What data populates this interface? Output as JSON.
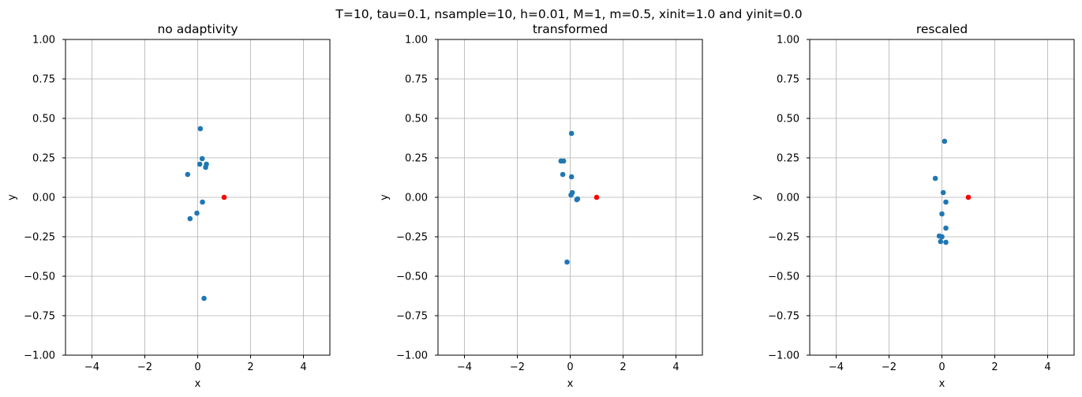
{
  "figure": {
    "suptitle": "T=10, tau=0.1, nsample=10, h=0.01, M=1, m=0.5, xinit=1.0 and yinit=0.0"
  },
  "chart_data": [
    {
      "type": "scatter",
      "title": "no adaptivity",
      "xlabel": "x",
      "ylabel": "y",
      "xlim": [
        -5,
        5
      ],
      "ylim": [
        -1,
        1
      ],
      "grid": true,
      "xticks": [
        -4,
        -2,
        0,
        2,
        4
      ],
      "xtick_labels": [
        "−4",
        "−2",
        "0",
        "2",
        "4"
      ],
      "yticks": [
        1.0,
        0.75,
        0.5,
        0.25,
        0.0,
        -0.25,
        -0.5,
        -0.75,
        -1.0
      ],
      "ytick_labels": [
        "1.00",
        "0.75",
        "0.50",
        "0.25",
        "0.00",
        "−0.25",
        "−0.50",
        "−0.75",
        "−1.00"
      ],
      "series": [
        {
          "color": "#1f77b4",
          "x": [
            0.1,
            0.17,
            0.08,
            0.33,
            0.3,
            -0.38,
            0.18,
            -0.03,
            -0.29,
            0.24
          ],
          "y": [
            0.435,
            0.245,
            0.21,
            0.21,
            0.19,
            0.145,
            -0.03,
            -0.1,
            -0.135,
            -0.64
          ]
        },
        {
          "color": "#ff0000",
          "x": [
            1.0
          ],
          "y": [
            0.0
          ]
        }
      ]
    },
    {
      "type": "scatter",
      "title": "transformed",
      "xlabel": "x",
      "ylabel": "y",
      "xlim": [
        -5,
        5
      ],
      "ylim": [
        -1,
        1
      ],
      "grid": true,
      "xticks": [
        -4,
        -2,
        0,
        2,
        4
      ],
      "xtick_labels": [
        "−4",
        "−2",
        "0",
        "2",
        "4"
      ],
      "yticks": [
        1.0,
        0.75,
        0.5,
        0.25,
        0.0,
        -0.25,
        -0.5,
        -0.75,
        -1.0
      ],
      "ytick_labels": [
        "1.00",
        "0.75",
        "0.50",
        "0.25",
        "0.00",
        "−0.25",
        "−0.50",
        "−0.75",
        "−1.00"
      ],
      "series": [
        {
          "color": "#1f77b4",
          "x": [
            0.05,
            -0.35,
            -0.25,
            -0.28,
            0.05,
            0.08,
            0.03,
            0.28,
            0.25,
            -0.12
          ],
          "y": [
            0.405,
            0.23,
            0.23,
            0.145,
            0.13,
            0.03,
            0.015,
            -0.01,
            -0.015,
            -0.41
          ]
        },
        {
          "color": "#ff0000",
          "x": [
            1.0
          ],
          "y": [
            0.0
          ]
        }
      ]
    },
    {
      "type": "scatter",
      "title": "rescaled",
      "xlabel": "x",
      "ylabel": "y",
      "xlim": [
        -5,
        5
      ],
      "ylim": [
        -1,
        1
      ],
      "grid": true,
      "xticks": [
        -4,
        -2,
        0,
        2,
        4
      ],
      "xtick_labels": [
        "−4",
        "−2",
        "0",
        "2",
        "4"
      ],
      "yticks": [
        1.0,
        0.75,
        0.5,
        0.25,
        0.0,
        -0.25,
        -0.5,
        -0.75,
        -1.0
      ],
      "ytick_labels": [
        "1.00",
        "0.75",
        "0.50",
        "0.25",
        "0.00",
        "−0.25",
        "−0.50",
        "−0.75",
        "−1.00"
      ],
      "series": [
        {
          "color": "#1f77b4",
          "x": [
            0.1,
            -0.25,
            0.05,
            0.15,
            0.0,
            0.15,
            -0.1,
            0.0,
            -0.05,
            0.15
          ],
          "y": [
            0.355,
            0.12,
            0.03,
            -0.03,
            -0.105,
            -0.195,
            -0.245,
            -0.25,
            -0.28,
            -0.285
          ]
        },
        {
          "color": "#ff0000",
          "x": [
            1.0
          ],
          "y": [
            0.0
          ]
        }
      ]
    }
  ]
}
